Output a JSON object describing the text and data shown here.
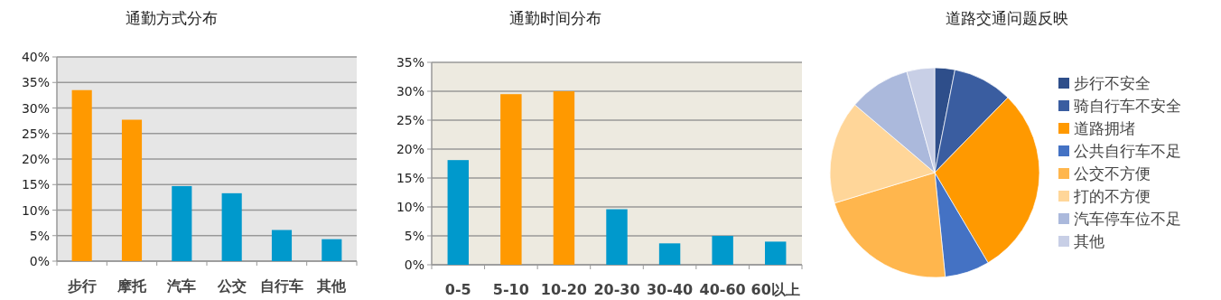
{
  "chart_data": [
    {
      "type": "bar",
      "title": "通勤方式分布",
      "categories": [
        "步行",
        "摩托",
        "汽车",
        "公交",
        "自行车",
        "其他"
      ],
      "values": [
        33.5,
        27.7,
        14.7,
        13.3,
        6.1,
        4.3
      ],
      "colors": [
        "#ff9900",
        "#ff9900",
        "#0099cc",
        "#0099cc",
        "#0099cc",
        "#0099cc"
      ],
      "ylim": [
        0,
        40
      ],
      "yticks": [
        {
          "value": 0,
          "label": "0%"
        },
        {
          "value": 5,
          "label": "5%"
        },
        {
          "value": 10,
          "label": "10%"
        },
        {
          "value": 15,
          "label": "15%"
        },
        {
          "value": 20,
          "label": "20%"
        },
        {
          "value": 25,
          "label": "25%"
        },
        {
          "value": 30,
          "label": "30%"
        },
        {
          "value": 35,
          "label": "35%"
        },
        {
          "value": 40,
          "label": "40%"
        }
      ],
      "grid": "y"
    },
    {
      "type": "bar",
      "title": "通勤时间分布",
      "categories": [
        "0-5",
        "5-10",
        "10-20",
        "20-30",
        "30-40",
        "40-60",
        "60以上"
      ],
      "values": [
        18.1,
        29.5,
        30.0,
        9.6,
        3.7,
        5.0,
        4.0
      ],
      "colors": [
        "#0099cc",
        "#ff9900",
        "#ff9900",
        "#0099cc",
        "#0099cc",
        "#0099cc",
        "#0099cc"
      ],
      "ylim": [
        0,
        35
      ],
      "yticks": [
        {
          "value": 0,
          "label": "0%"
        },
        {
          "value": 5,
          "label": "5%"
        },
        {
          "value": 10,
          "label": "10%"
        },
        {
          "value": 15,
          "label": "15%"
        },
        {
          "value": 20,
          "label": "20%"
        },
        {
          "value": 25,
          "label": "25%"
        },
        {
          "value": 30,
          "label": "30%"
        },
        {
          "value": 35,
          "label": "35%"
        }
      ],
      "grid": "y"
    },
    {
      "type": "pie",
      "title": "道路交通问题反映",
      "categories": [
        "步行不安全",
        "骑自行车不安全",
        "道路拥堵",
        "公共自行车不足",
        "公交不方便",
        "打的不方便",
        "汽车停车位不足",
        "其他"
      ],
      "values": [
        3.1,
        9.2,
        29.2,
        6.9,
        21.9,
        15.9,
        9.5,
        4.3
      ],
      "colors": [
        "#2e4e8a",
        "#3a5da0",
        "#ff9900",
        "#4472c4",
        "#ffb64d",
        "#ffd699",
        "#abb9dc",
        "#c8cfe6"
      ],
      "legend": "right"
    }
  ]
}
